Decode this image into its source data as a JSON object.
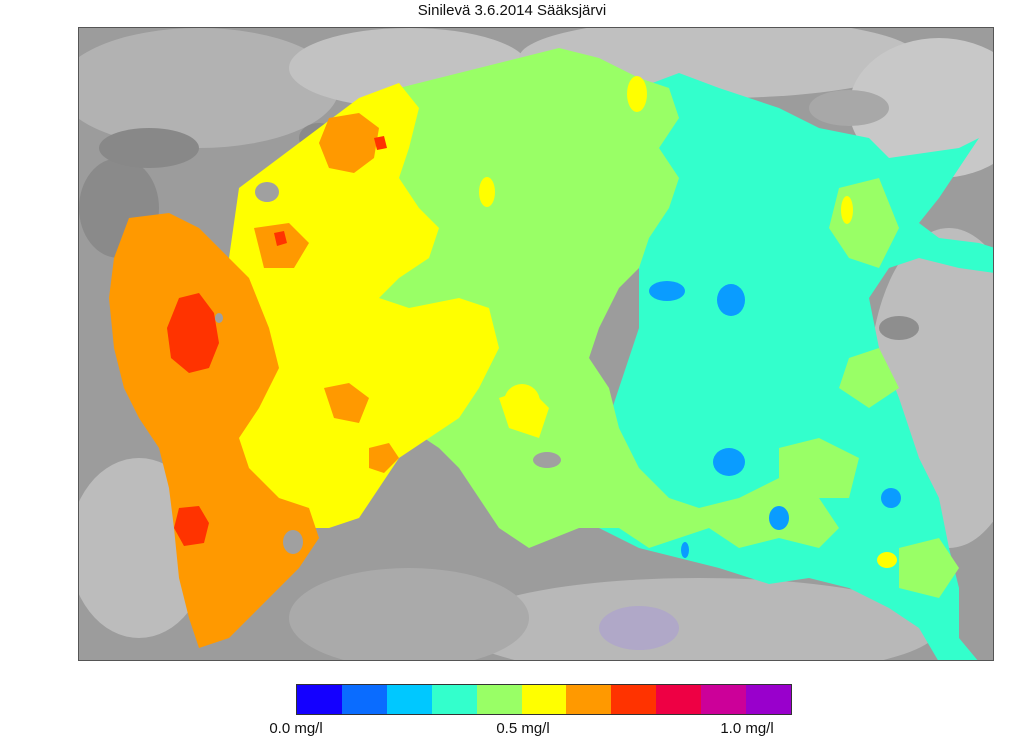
{
  "title": "Sinilevä 3.6.2014 Sääksjärvi",
  "legend": {
    "colors": [
      "#1400ff",
      "#0a6cff",
      "#00c8ff",
      "#33ffcc",
      "#99ff66",
      "#ffff00",
      "#ff9900",
      "#ff3300",
      "#ee0044",
      "#cc0099",
      "#9900cc"
    ],
    "ticks": [
      "0.0 mg/l",
      "0.5 mg/l",
      "1.0 mg/l"
    ]
  },
  "map": {
    "background_colors": [
      "#8c8c8c",
      "#a6a6a6",
      "#c4c4c4",
      "#b0a8c8"
    ],
    "contour_colors": {
      "orange": "#ff9900",
      "red": "#ff3300",
      "yellow": "#ffff00",
      "green": "#99ff66",
      "cyan": "#33ffcc",
      "blue": "#0a9cff"
    }
  }
}
